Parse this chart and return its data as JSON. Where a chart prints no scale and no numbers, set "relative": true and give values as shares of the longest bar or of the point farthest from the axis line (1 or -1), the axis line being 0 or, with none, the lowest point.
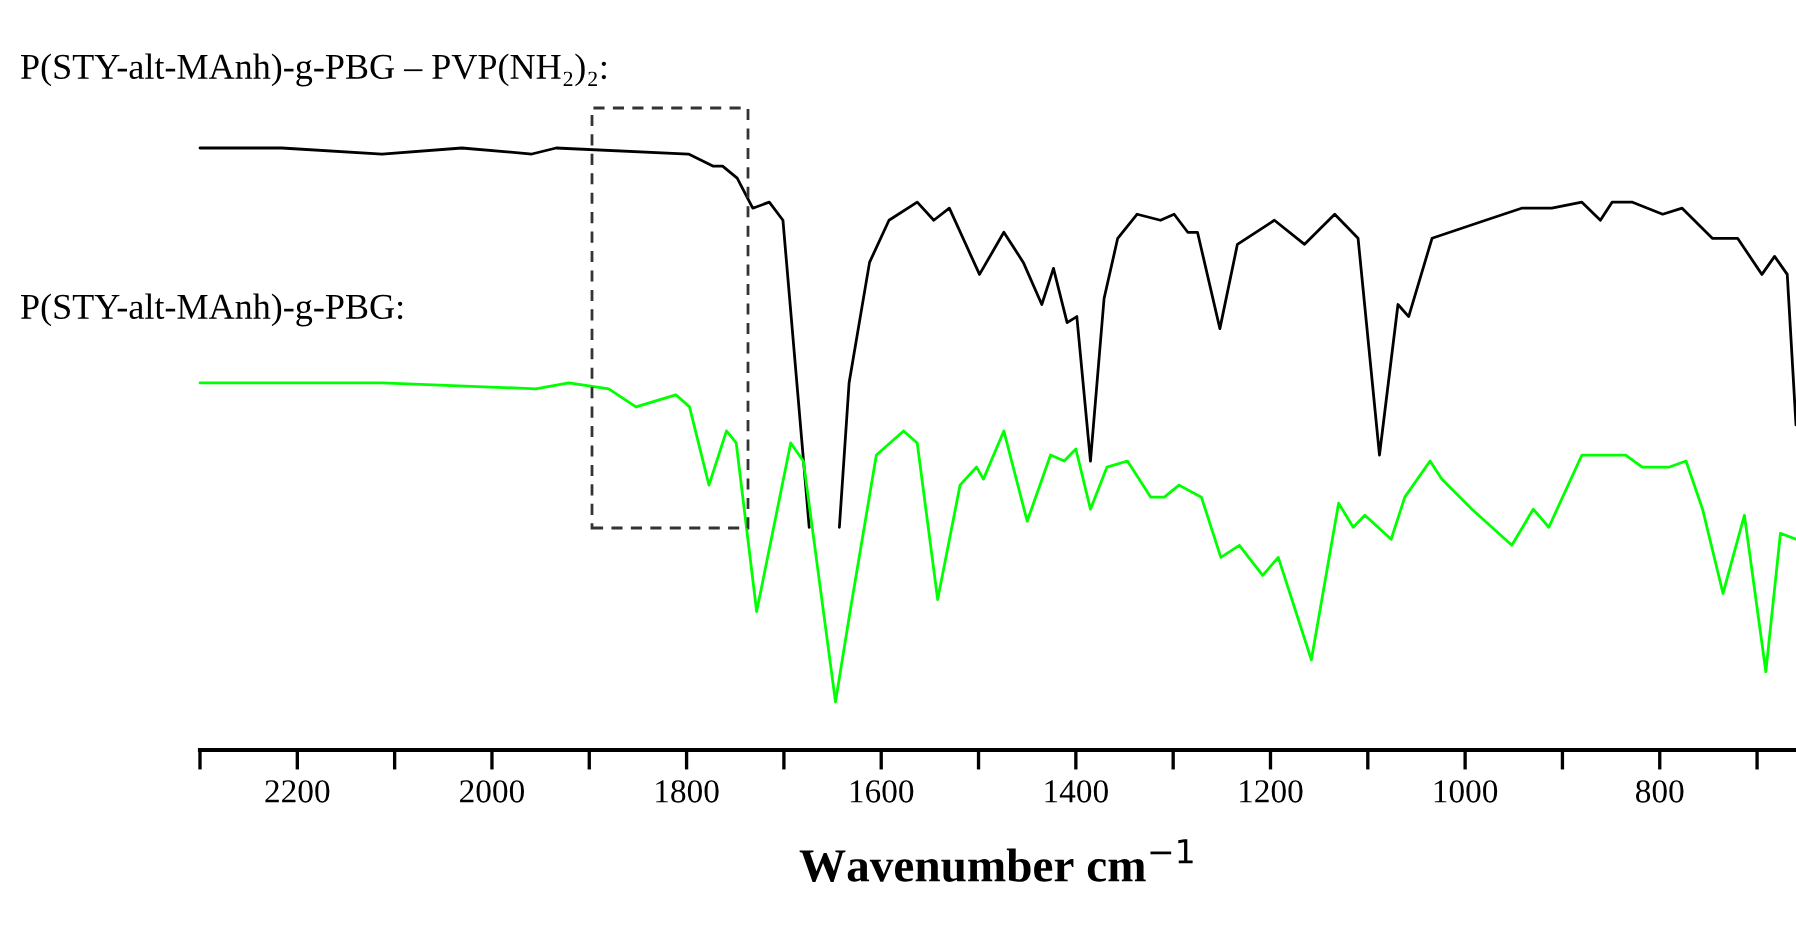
{
  "chart_data": {
    "type": "line",
    "relative": true,
    "xlabel": "Wavenumber cm$^{−1}$",
    "xlim": [
      2300,
      660
    ],
    "xticks": [
      {
        "value": 2300,
        "label": null
      },
      2200,
      {
        "value": 2100,
        "label": null
      },
      2000,
      {
        "value": 1900,
        "label": null
      },
      1800,
      {
        "value": 1700,
        "label": null
      },
      1600,
      {
        "value": 1500,
        "label": null
      },
      1400,
      {
        "value": 1300,
        "label": null
      },
      1200,
      {
        "value": 1100,
        "label": null
      },
      1000,
      {
        "value": 900,
        "label": null
      },
      800,
      {
        "value": 700,
        "label": null
      }
    ],
    "series": [
      {
        "name": "P(STY-alt-MAnh)-g-PBG – PVP(NH₂)₂:",
        "color": "#000000",
        "x": [
          2300,
          2216,
          2113,
          2031,
          1959,
          1934,
          1798,
          1773,
          1763,
          1748,
          1732,
          1715,
          1701,
          1674,
          1660,
          1643,
          1633,
          1612,
          1592,
          1563,
          1546,
          1530,
          1499,
          1474,
          1454,
          1435,
          1423,
          1409,
          1399,
          1385,
          1371,
          1357,
          1337,
          1313,
          1299,
          1285,
          1275,
          1252,
          1234,
          1196,
          1165,
          1134,
          1110,
          1088,
          1069,
          1058,
          1034,
          979,
          942,
          911,
          880,
          861,
          849,
          828,
          797,
          777,
          746,
          720,
          695,
          682,
          669,
          660
        ],
        "values": [
          1.0,
          1.0,
          0.99,
          1.0,
          0.99,
          1.0,
          0.99,
          0.97,
          0.97,
          0.95,
          0.9,
          0.91,
          0.88,
          0.37,
          null,
          0.37,
          0.61,
          0.81,
          0.88,
          0.91,
          0.88,
          0.9,
          0.79,
          0.86,
          0.81,
          0.74,
          0.8,
          0.71,
          0.72,
          0.48,
          0.75,
          0.85,
          0.89,
          0.88,
          0.89,
          0.86,
          0.86,
          0.7,
          0.84,
          0.88,
          0.84,
          0.89,
          0.85,
          0.49,
          0.74,
          0.72,
          0.85,
          0.88,
          0.9,
          0.9,
          0.91,
          0.88,
          0.91,
          0.91,
          0.89,
          0.9,
          0.85,
          0.85,
          0.79,
          0.82,
          0.79,
          0.54
        ]
      },
      {
        "name": "P(STY-alt-MAnh)-g-PBG:",
        "color": "#00ff00",
        "x": [
          2300,
          2113,
          1955,
          1921,
          1880,
          1852,
          1811,
          1797,
          1777,
          1759,
          1749,
          1728,
          1693,
          1680,
          1647,
          1632,
          1605,
          1577,
          1563,
          1542,
          1519,
          1502,
          1495,
          1474,
          1450,
          1426,
          1412,
          1400,
          1385,
          1368,
          1347,
          1323,
          1309,
          1294,
          1271,
          1251,
          1232,
          1208,
          1192,
          1158,
          1130,
          1115,
          1103,
          1076,
          1062,
          1036,
          1024,
          993,
          952,
          930,
          914,
          880,
          835,
          818,
          790,
          773,
          756,
          735,
          713,
          691,
          676,
          660
        ],
        "values": [
          0.61,
          0.61,
          0.6,
          0.61,
          0.6,
          0.57,
          0.59,
          0.57,
          0.44,
          0.53,
          0.51,
          0.23,
          0.51,
          0.48,
          0.08,
          0.23,
          0.49,
          0.53,
          0.51,
          0.25,
          0.44,
          0.47,
          0.45,
          0.53,
          0.38,
          0.49,
          0.48,
          0.5,
          0.4,
          0.47,
          0.48,
          0.42,
          0.42,
          0.44,
          0.42,
          0.32,
          0.34,
          0.29,
          0.32,
          0.15,
          0.41,
          0.37,
          0.39,
          0.35,
          0.42,
          0.48,
          0.45,
          0.4,
          0.34,
          0.4,
          0.37,
          0.49,
          0.49,
          0.47,
          0.47,
          0.48,
          0.4,
          0.26,
          0.39,
          0.13,
          0.36,
          0.35
        ]
      }
    ]
  }
}
